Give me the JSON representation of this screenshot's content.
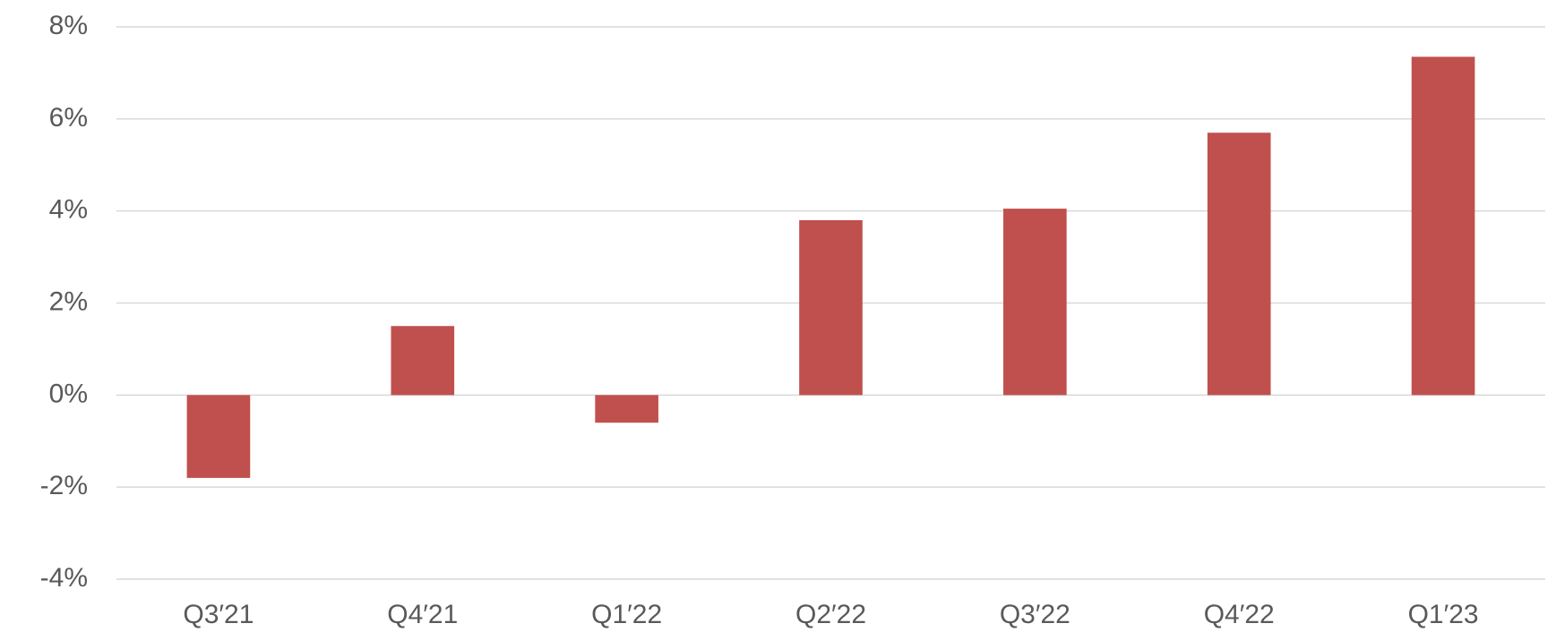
{
  "chart_data": {
    "type": "bar",
    "categories": [
      "Q3′21",
      "Q4′21",
      "Q1′22",
      "Q2′22",
      "Q3′22",
      "Q4′22",
      "Q1′23"
    ],
    "values": [
      -1.8,
      1.5,
      -0.6,
      3.8,
      4.05,
      5.7,
      7.35
    ],
    "color": "#c0504d",
    "ylim": [
      -4,
      8
    ],
    "yticks": [
      {
        "value": -4,
        "label": "-4%"
      },
      {
        "value": -2,
        "label": "-2%"
      },
      {
        "value": 0,
        "label": "0%"
      },
      {
        "value": 2,
        "label": "2%"
      },
      {
        "value": 4,
        "label": "4%"
      },
      {
        "value": 6,
        "label": "6%"
      },
      {
        "value": 8,
        "label": "8%"
      }
    ],
    "grid": true
  }
}
